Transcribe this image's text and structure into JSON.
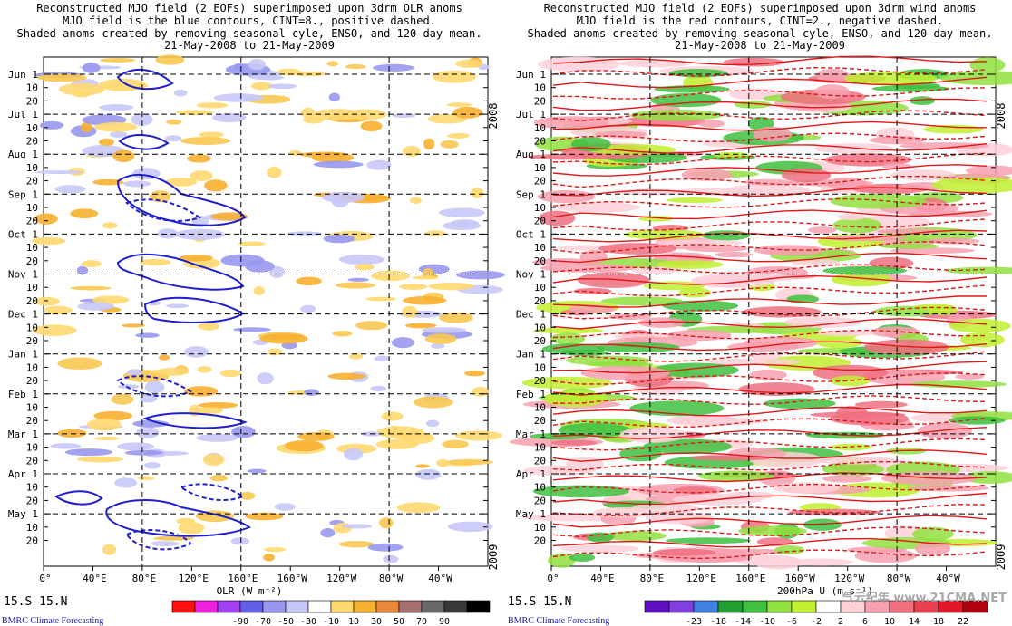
{
  "chart_data": [
    {
      "type": "heatmap",
      "title": "Reconstructed MJO field (2 EOFs) superimposed upon 3drm OLR anoms",
      "subtitle1": "MJO field is the blue contours, CINT=8., positive dashed.",
      "subtitle2": "Shaded anoms created by removing seasonal cyle, ENSO, and 120-day mean.",
      "date_range": "21-May-2008 to 21-May-2009",
      "xlabel": "OLR (W m⁻²)",
      "x_ticks": [
        "0°",
        "40°E",
        "80°E",
        "120°E",
        "160°E",
        "160°W",
        "120°W",
        "80°W",
        "40°W"
      ],
      "x_range_deg_east": [
        0,
        360
      ],
      "y_ticks": [
        "Jun 1",
        "10",
        "20",
        "Jul 1",
        "10",
        "20",
        "Aug 1",
        "10",
        "20",
        "Sep 1",
        "10",
        "20",
        "Oct 1",
        "10",
        "20",
        "Nov 1",
        "10",
        "20",
        "Dec 1",
        "10",
        "20",
        "Jan 1",
        "10",
        "20",
        "Feb 1",
        "10",
        "20",
        "Mar 1",
        "10",
        "20",
        "Apr 1",
        "10",
        "20",
        "May 1",
        "10",
        "20"
      ],
      "year_labels": [
        "2008",
        "2009"
      ],
      "region_label": "15.S-15.N",
      "contour_color": "#1f1fd0",
      "colorbar": {
        "colors": [
          "#ff1010",
          "#f020e0",
          "#a040f0",
          "#6060e8",
          "#9898f0",
          "#c8c8f8",
          "#ffffff",
          "#ffd870",
          "#f8b030",
          "#e88838",
          "#a87070",
          "#686868",
          "#383838",
          "#000000"
        ],
        "labels": [
          "-90",
          "-70",
          "-50",
          "-30",
          "-10",
          "10",
          "30",
          "50",
          "70",
          "90"
        ]
      },
      "source": "BMRC Climate Forecasting"
    },
    {
      "type": "heatmap",
      "title": "Reconstructed MJO field (2 EOFs) superimposed upon 3drm wind anoms",
      "subtitle1": "MJO field is the red contours, CINT=2., negative dashed.",
      "subtitle2": "Shaded anoms created by removing seasonal cyle, ENSO, and 120-day mean.",
      "date_range": "21-May-2008 to 21-May-2009",
      "xlabel": "200hPa U (m s⁻¹)",
      "x_ticks": [
        "0°",
        "40°E",
        "80°E",
        "120°E",
        "160°E",
        "160°W",
        "120°W",
        "80°W",
        "40°W"
      ],
      "x_range_deg_east": [
        0,
        360
      ],
      "y_ticks": [
        "Jun 1",
        "10",
        "20",
        "Jul 1",
        "10",
        "20",
        "Aug 1",
        "10",
        "20",
        "Sep 1",
        "10",
        "20",
        "Oct 1",
        "10",
        "20",
        "Nov 1",
        "10",
        "20",
        "Dec 1",
        "10",
        "20",
        "Jan 1",
        "10",
        "20",
        "Feb 1",
        "10",
        "20",
        "Mar 1",
        "10",
        "20",
        "Apr 1",
        "10",
        "20",
        "May 1",
        "10",
        "20"
      ],
      "year_labels": [
        "2008",
        "2009"
      ],
      "region_label": "15.S-15.N",
      "contour_color": "#e01818",
      "colorbar": {
        "colors": [
          "#6010c0",
          "#8040e0",
          "#4080e0",
          "#20a030",
          "#40c040",
          "#90e040",
          "#c0f030",
          "#ffffff",
          "#ffd0d8",
          "#f8a0b0",
          "#f07080",
          "#e84050",
          "#e01828",
          "#b00010"
        ],
        "labels": [
          "-23",
          "-18",
          "-14",
          "-10",
          "-6",
          "-2",
          "2",
          "6",
          "10",
          "14",
          "18",
          "22"
        ]
      },
      "source": "BMRC Climate Forecasting",
      "watermark": "气云纪年 www.21CMA.NET"
    }
  ]
}
